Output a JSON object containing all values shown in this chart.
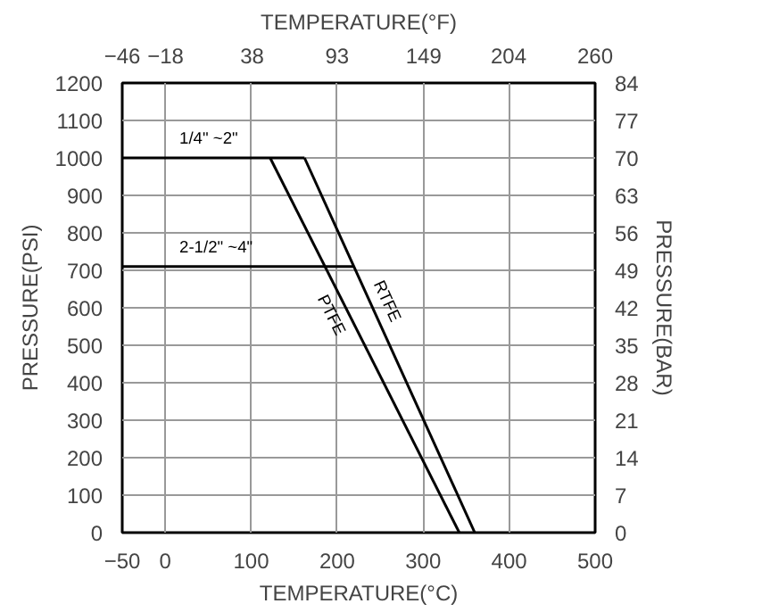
{
  "chart_data": {
    "type": "line",
    "xlabel": "TEMPERATURE(°C)",
    "x2label": "TEMPERATURE(°F)",
    "ylabel": "PRESSURE(PSI)",
    "y2label": "PRESSURE(BAR)",
    "series": [
      {
        "name": "1/4\" ~2\"",
        "color": "#000000",
        "x": [
          -50,
          162
        ],
        "values": [
          1000,
          1000
        ]
      },
      {
        "name": "2-1/2\" ~4\"",
        "color": "#000000",
        "x": [
          -50,
          219
        ],
        "values": [
          710,
          710
        ]
      },
      {
        "name": "PTFE",
        "color": "#000000",
        "x": [
          122,
          342
        ],
        "values": [
          1000,
          0
        ]
      },
      {
        "name": "RTFE",
        "color": "#000000",
        "x": [
          162,
          360
        ],
        "values": [
          1000,
          0
        ]
      }
    ],
    "xlim": [
      -50,
      500
    ],
    "xticks": [
      -50,
      0,
      100,
      200,
      300,
      400,
      500
    ],
    "x2lim": [
      -46,
      260
    ],
    "x2ticks": [
      -46,
      -18,
      38,
      93,
      149,
      204,
      260
    ],
    "ylim": [
      0,
      1200
    ],
    "yticks": [
      0,
      100,
      200,
      300,
      400,
      500,
      600,
      700,
      800,
      900,
      1000,
      1100,
      1200
    ],
    "y2lim": [
      0,
      84
    ],
    "y2ticks": [
      0,
      7,
      14,
      21,
      28,
      35,
      42,
      49,
      56,
      63,
      70,
      77,
      84
    ],
    "grid": true,
    "marker": "none",
    "line_style": "solid"
  }
}
